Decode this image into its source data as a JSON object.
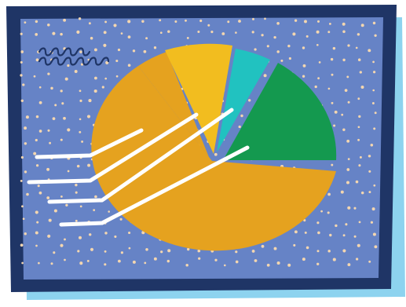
{
  "illustration": {
    "colors": {
      "background": "#ffffff",
      "board_shadow": "#8dd3ef",
      "frame": "#1f3566",
      "board": "#6683c6",
      "dots": "#f3d6b0",
      "scribble": "#1f3566",
      "callout_lines": "#ffffff",
      "pie_large": "#e5a21f",
      "pie_yellow": "#f2bd1f",
      "pie_teal": "#21c2c0",
      "pie_green": "#14994f",
      "pie_gap": "#e5a21f"
    },
    "pie_slices": [
      {
        "name": "large-orange",
        "share": 0.62,
        "color_key": "pie_large",
        "exploded": false
      },
      {
        "name": "small-orange",
        "share": 0.06,
        "color_key": "pie_gap",
        "exploded": true
      },
      {
        "name": "yellow",
        "share": 0.11,
        "color_key": "pie_yellow",
        "exploded": true
      },
      {
        "name": "teal",
        "share": 0.05,
        "color_key": "pie_teal",
        "exploded": true
      },
      {
        "name": "green",
        "share": 0.16,
        "color_key": "pie_green",
        "exploded": true
      }
    ],
    "callout_line_count": 4,
    "scribble_row_count": 2
  }
}
